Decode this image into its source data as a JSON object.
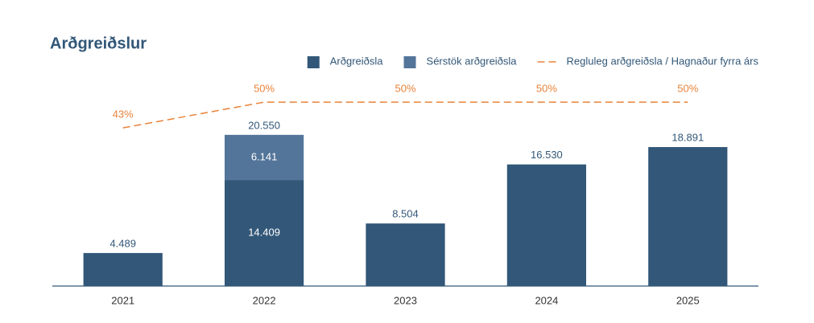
{
  "chart_data": {
    "type": "bar",
    "title": "Arðgreiðslur",
    "categories": [
      "2021",
      "2022",
      "2023",
      "2024",
      "2025"
    ],
    "series": [
      {
        "name": "Arðgreiðsla",
        "color": "#325778",
        "values": [
          4489,
          14409,
          8504,
          16530,
          18891
        ],
        "value_labels": [
          "4.489",
          "14.409",
          "8.504",
          "16.530",
          "18.891"
        ]
      },
      {
        "name": "Sérstök arðgreiðsla",
        "color": "#54759a",
        "values": [
          null,
          6141,
          null,
          null,
          null
        ],
        "value_labels": [
          null,
          "6.141",
          null,
          null,
          null
        ]
      },
      {
        "name": "Regluleg arðgreiðsla / Hagnaður fyrra árs",
        "type": "line",
        "axis": "y2",
        "color": "#e8833a",
        "dashed": true,
        "values": [
          43,
          50,
          50,
          50,
          50
        ],
        "value_labels": [
          "43%",
          "50%",
          "50%",
          "50%",
          "50%"
        ]
      }
    ],
    "stack_totals": [
      null,
      20550,
      null,
      null,
      null
    ],
    "stack_total_labels": [
      null,
      "20.550",
      null,
      null,
      null
    ],
    "ylim": [
      0,
      32000
    ],
    "y2lim": [
      0,
      64
    ],
    "stacked": true,
    "grid": false,
    "legend": "top-right"
  }
}
